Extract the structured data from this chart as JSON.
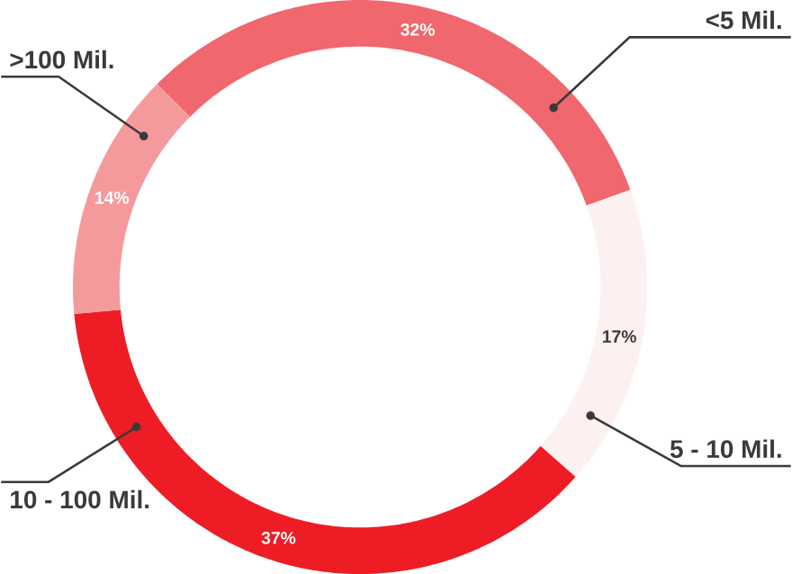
{
  "chart_data": {
    "type": "donut",
    "categories": [
      "<5 Mil.",
      "5 - 10 Mil.",
      "10 - 100 Mil.",
      ">100 Mil."
    ],
    "values": [
      32,
      17,
      37,
      14
    ],
    "colors": [
      "#f0676d",
      "#fdf0f0",
      "#ee1c25",
      "#f59a9c"
    ],
    "value_labels": [
      "32%",
      "17%",
      "37%",
      "14%"
    ]
  }
}
